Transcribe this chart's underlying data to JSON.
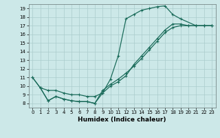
{
  "xlabel": "Humidex (Indice chaleur)",
  "bg_color": "#cce8e8",
  "grid_color": "#aacccc",
  "line_color": "#1a6b5a",
  "xlim": [
    -0.5,
    23.5
  ],
  "ylim": [
    7.5,
    19.5
  ],
  "xticks": [
    0,
    1,
    2,
    3,
    4,
    5,
    6,
    7,
    8,
    9,
    10,
    11,
    12,
    13,
    14,
    15,
    16,
    17,
    18,
    19,
    20,
    21,
    22,
    23
  ],
  "yticks": [
    8,
    9,
    10,
    11,
    12,
    13,
    14,
    15,
    16,
    17,
    18,
    19
  ],
  "s1x": [
    0,
    1,
    2,
    3,
    4,
    5,
    6,
    7,
    8,
    9,
    10,
    11,
    12,
    13,
    14,
    15,
    16,
    17,
    18,
    19,
    21,
    22,
    23
  ],
  "s1y": [
    11.0,
    9.8,
    8.3,
    8.8,
    8.5,
    8.3,
    8.2,
    8.2,
    8.0,
    9.2,
    10.8,
    13.5,
    17.8,
    18.3,
    18.8,
    19.0,
    19.2,
    19.3,
    18.3,
    17.8,
    17.0,
    17.0,
    17.0
  ],
  "s2x": [
    0,
    1,
    2,
    3,
    4,
    5,
    6,
    7,
    8,
    9,
    10,
    11,
    12,
    13,
    14,
    15,
    16,
    17,
    18,
    19,
    20,
    21,
    22,
    23
  ],
  "s2y": [
    11.0,
    9.8,
    8.3,
    8.8,
    8.5,
    8.3,
    8.2,
    8.2,
    8.0,
    9.5,
    10.2,
    10.8,
    11.5,
    12.3,
    13.2,
    14.2,
    15.2,
    16.2,
    16.8,
    17.0,
    17.0,
    17.0,
    17.0,
    17.0
  ],
  "s3x": [
    1,
    2,
    3,
    4,
    5,
    6,
    7,
    8,
    9,
    10,
    11,
    12,
    13,
    14,
    15,
    16,
    17,
    18,
    19,
    20,
    21,
    22,
    23
  ],
  "s3y": [
    9.8,
    9.5,
    9.5,
    9.2,
    9.0,
    9.0,
    8.8,
    8.8,
    9.2,
    10.0,
    10.5,
    11.2,
    12.5,
    13.5,
    14.5,
    15.5,
    16.5,
    17.2,
    17.2,
    17.0,
    17.0,
    17.0,
    17.0
  ],
  "xlabel_fontsize": 6.5,
  "tick_fontsize": 5.0
}
